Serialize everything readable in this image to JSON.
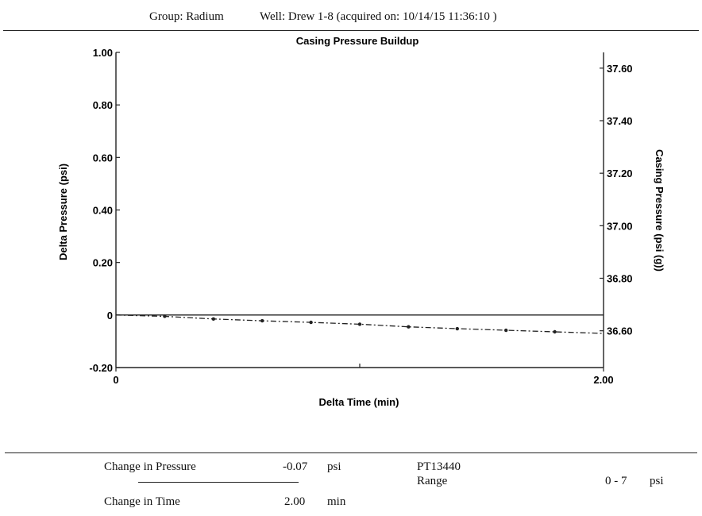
{
  "header": {
    "group": "Group: Radium",
    "well": "Well: Drew 1-8 (acquired on: 10/14/15 11:36:10 )"
  },
  "chart_data": {
    "type": "line",
    "title": "Casing Pressure Buildup",
    "xlabel": "Delta Time (min)",
    "ylabel": "Delta Pressure (psi)",
    "y2label": "Casing Pressure (psi (g))",
    "xlim": [
      0,
      2.0
    ],
    "ylim": [
      -0.2,
      1.0
    ],
    "y2lim": [
      36.46,
      37.66
    ],
    "x_ticks": [
      "0",
      "2.00"
    ],
    "y_ticks": [
      {
        "value": 1.0,
        "label": "1.00"
      },
      {
        "value": 0.8,
        "label": "0.80"
      },
      {
        "value": 0.6,
        "label": "0.60"
      },
      {
        "value": 0.4,
        "label": "0.40"
      },
      {
        "value": 0.2,
        "label": "0.20"
      },
      {
        "value": 0.0,
        "label": "0"
      },
      {
        "value": -0.2,
        "label": "-0.20"
      }
    ],
    "y2_ticks": [
      {
        "value": 37.6,
        "label": "37.60"
      },
      {
        "value": 37.4,
        "label": "37.40"
      },
      {
        "value": 37.2,
        "label": "37.20"
      },
      {
        "value": 37.0,
        "label": "37.00"
      },
      {
        "value": 36.8,
        "label": "36.80"
      },
      {
        "value": 36.6,
        "label": "36.60"
      }
    ],
    "reference_line": 0,
    "series": [
      {
        "x": [
          0,
          0.2,
          0.4,
          0.6,
          0.8,
          1.0,
          1.2,
          1.4,
          1.6,
          1.8,
          2.0
        ],
        "values": [
          0.0,
          -0.005,
          -0.015,
          -0.022,
          -0.028,
          -0.035,
          -0.045,
          -0.052,
          -0.058,
          -0.064,
          -0.07
        ],
        "style": "dash-dot",
        "color": "#222222"
      }
    ],
    "grid": false
  },
  "footer": {
    "change_pressure_label": "Change in Pressure",
    "change_pressure_value": "-0.07",
    "change_pressure_unit": "psi",
    "change_time_label": "Change in Time",
    "change_time_value": "2.00",
    "change_time_unit": "min",
    "sensor": "PT13440",
    "range_label": "Range",
    "range_value": "0 - 7",
    "range_unit": "psi"
  }
}
